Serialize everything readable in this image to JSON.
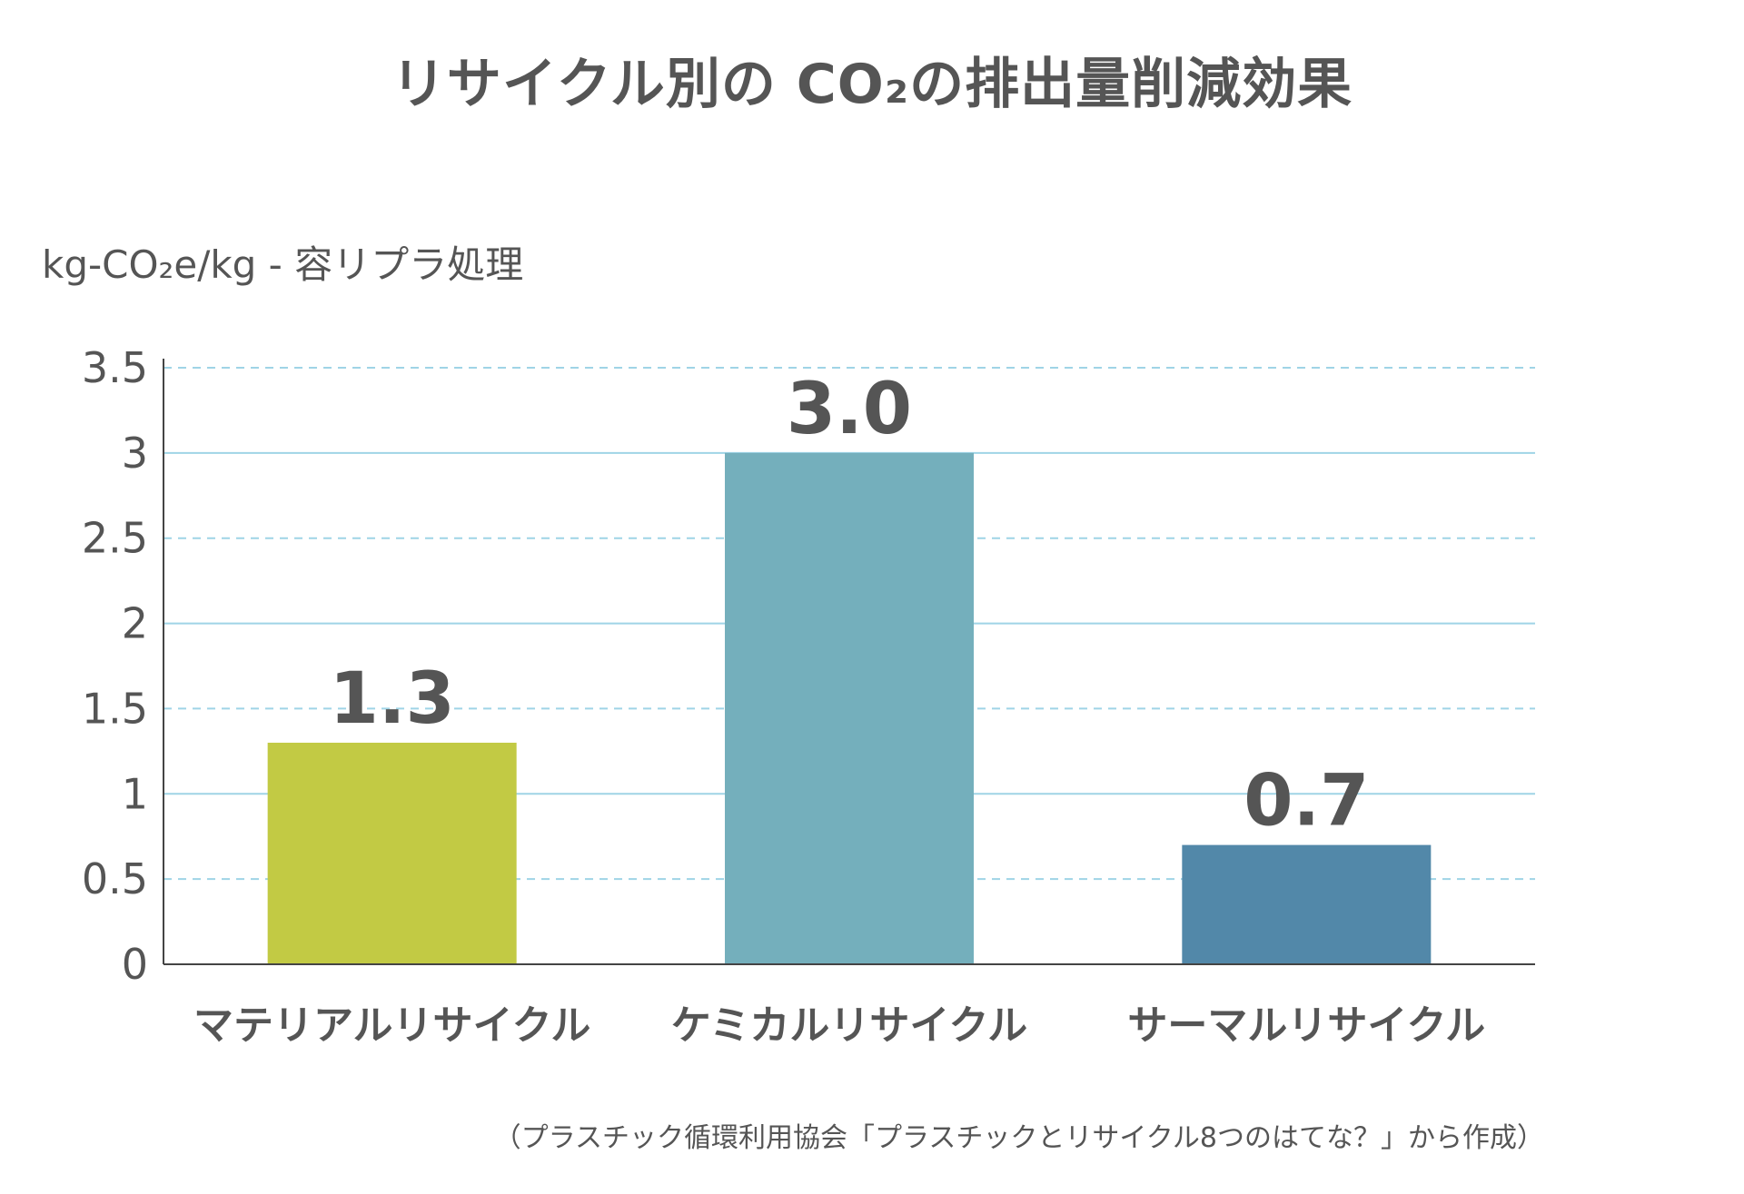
{
  "chart_data": {
    "type": "bar",
    "title": "リサイクル別の CO₂の排出量削減効果",
    "ylabel": "kg-CO₂e/kg - 容リプラ処理",
    "xlabel": "",
    "categories": [
      "マテリアルリサイクル",
      "ケミカルリサイクル",
      "サーマルリサイクル"
    ],
    "values": [
      1.3,
      3.0,
      0.7
    ],
    "value_labels": [
      "1.3",
      "3.0",
      "0.7"
    ],
    "bar_colors": [
      "#c2ca44",
      "#74afbc",
      "#5288a9"
    ],
    "ylim": [
      0,
      3.5
    ],
    "yticks": [
      {
        "value": 0,
        "label": "0"
      },
      {
        "value": 0.5,
        "label": "0.5"
      },
      {
        "value": 1,
        "label": "1"
      },
      {
        "value": 1.5,
        "label": "1.5"
      },
      {
        "value": 2,
        "label": "2"
      },
      {
        "value": 2.5,
        "label": "2.5"
      },
      {
        "value": 3,
        "label": "3"
      },
      {
        "value": 3.5,
        "label": "3.5"
      }
    ],
    "grid": true,
    "grid_color": "#9fd4e6",
    "axis_color": "#444444",
    "source_note": "（プラスチック循環利用協会「プラスチックとリサイクル8つのはてな？」から作成）"
  }
}
